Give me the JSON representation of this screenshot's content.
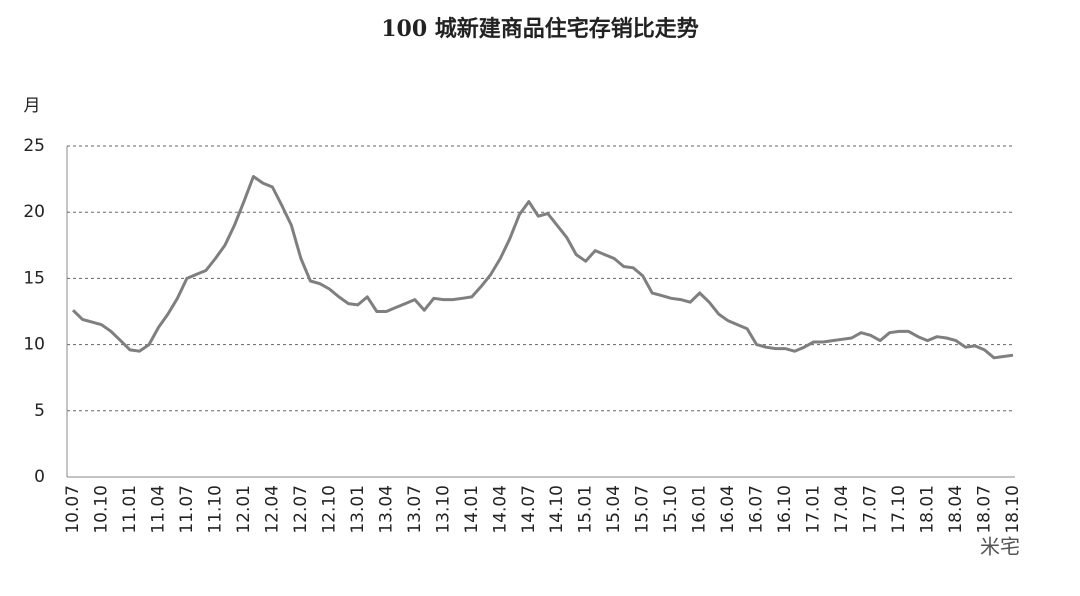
{
  "chart_data": {
    "type": "line",
    "title": "100 城新建商品住宅存销比走势",
    "y_label": "月",
    "watermark": "米宅",
    "categories": [
      "10.07",
      null,
      null,
      "10.10",
      null,
      null,
      "11.01",
      null,
      null,
      "11.04",
      null,
      null,
      "11.07",
      null,
      null,
      "11.10",
      null,
      null,
      "12.01",
      null,
      null,
      "12.04",
      null,
      null,
      "12.07",
      null,
      null,
      "12.10",
      null,
      null,
      "13.01",
      null,
      null,
      "13.04",
      null,
      null,
      "13.07",
      null,
      null,
      "13.10",
      null,
      null,
      "14.01",
      null,
      null,
      "14.04",
      null,
      null,
      "14.07",
      null,
      null,
      "14.10",
      null,
      null,
      "15.01",
      null,
      null,
      "15.04",
      null,
      null,
      "15.07",
      null,
      null,
      "15.10",
      null,
      null,
      "16.01",
      null,
      null,
      "16.04",
      null,
      null,
      "16.07",
      null,
      null,
      "16.10",
      null,
      null,
      "17.01",
      null,
      null,
      "17.04",
      null,
      null,
      "17.07",
      null,
      null,
      "17.10",
      null,
      null,
      "18.01",
      null,
      null,
      "18.04",
      null,
      null,
      "18.07",
      null,
      null,
      "18.10"
    ],
    "series": [
      {
        "color": "#7f7f7f",
        "values": [
          12.6,
          11.9,
          11.7,
          11.5,
          11.0,
          10.3,
          9.6,
          9.5,
          10.0,
          11.3,
          12.3,
          13.5,
          15.0,
          15.3,
          15.6,
          16.5,
          17.5,
          19.0,
          20.8,
          22.7,
          22.2,
          21.9,
          20.5,
          19.0,
          16.5,
          14.8,
          14.6,
          14.2,
          13.6,
          13.1,
          13.0,
          13.6,
          12.5,
          12.5,
          12.8,
          13.1,
          13.4,
          12.6,
          13.5,
          13.4,
          13.4,
          13.5,
          13.6,
          14.4,
          15.3,
          16.5,
          18.0,
          19.8,
          20.8,
          19.7,
          19.9,
          19.0,
          18.1,
          16.8,
          16.3,
          17.1,
          16.8,
          16.5,
          15.9,
          15.8,
          15.2,
          13.9,
          13.7,
          13.5,
          13.4,
          13.2,
          13.9,
          13.2,
          12.3,
          11.8,
          11.5,
          11.2,
          10.0,
          9.8,
          9.7,
          9.7,
          9.5,
          9.8,
          10.2,
          10.2,
          10.3,
          10.4,
          10.5,
          10.9,
          10.7,
          10.3,
          10.9,
          11.0,
          11.0,
          10.6,
          10.3,
          10.6,
          10.5,
          10.3,
          9.8,
          9.9,
          9.6,
          9.0,
          9.1,
          9.2
        ]
      }
    ],
    "ylim": [
      0,
      25
    ],
    "yticks": [
      0,
      5,
      10,
      15,
      20,
      25
    ],
    "grid": true
  }
}
